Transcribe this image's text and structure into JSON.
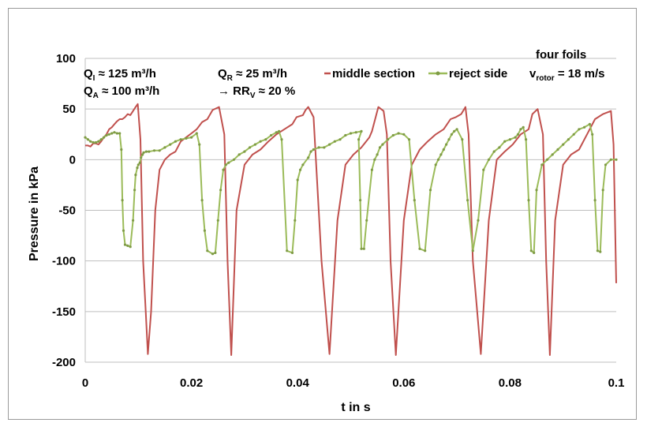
{
  "chart_data": {
    "type": "line",
    "xlabel": "t in s",
    "ylabel": "Pressure in kPa",
    "xlim": [
      0,
      0.1
    ],
    "ylim": [
      -200,
      100
    ],
    "x_ticks": [
      0,
      0.02,
      0.04,
      0.06,
      0.08,
      0.1
    ],
    "x_tick_labels": [
      "0",
      "0.02",
      "0.04",
      "0.06",
      "0.08",
      "0.1"
    ],
    "y_ticks": [
      100,
      50,
      0,
      -50,
      -100,
      -150,
      -200
    ],
    "y_tick_labels": [
      "100",
      "50",
      "0",
      "-50",
      "-100",
      "-150",
      "-200"
    ],
    "grid": "horizontal",
    "legend_position": "top",
    "series": [
      {
        "name": "middle section",
        "color": "#c0504d",
        "marker": "none",
        "x": [
          0,
          0.0005,
          0.001,
          0.0015,
          0.002,
          0.0025,
          0.003,
          0.0035,
          0.004,
          0.0045,
          0.005,
          0.0055,
          0.006,
          0.0065,
          0.007,
          0.0075,
          0.008,
          0.0085,
          0.009,
          0.0095,
          0.0099,
          0.0104,
          0.0109,
          0.0114,
          0.0118,
          0.0124,
          0.0132,
          0.014,
          0.015,
          0.016,
          0.017,
          0.018,
          0.019,
          0.02,
          0.021,
          0.022,
          0.023,
          0.024,
          0.0252,
          0.0262,
          0.0268,
          0.0275,
          0.0285,
          0.03,
          0.0315,
          0.033,
          0.0345,
          0.036,
          0.0375,
          0.039,
          0.0398,
          0.041,
          0.0415,
          0.042,
          0.043,
          0.0445,
          0.046,
          0.0475,
          0.049,
          0.0505,
          0.052,
          0.0535,
          0.054,
          0.0552,
          0.0562,
          0.0568,
          0.0575,
          0.0585,
          0.06,
          0.0615,
          0.063,
          0.0645,
          0.066,
          0.0675,
          0.0688,
          0.0698,
          0.0708,
          0.0716,
          0.0722,
          0.073,
          0.0745,
          0.076,
          0.0775,
          0.079,
          0.0805,
          0.082,
          0.0835,
          0.0842,
          0.0852,
          0.0862,
          0.0868,
          0.0875,
          0.0885,
          0.09,
          0.0915,
          0.093,
          0.0945,
          0.096,
          0.0975,
          0.099,
          0.0995,
          0.1
        ],
        "y": [
          14,
          14,
          13,
          16,
          16,
          15,
          18,
          22,
          25,
          30,
          32,
          35,
          38,
          40,
          40,
          42,
          45,
          44,
          48,
          52,
          55,
          20,
          -100,
          -150,
          -192,
          -150,
          -50,
          -10,
          0,
          5,
          8,
          18,
          22,
          26,
          30,
          37,
          40,
          49,
          52,
          25,
          -100,
          -193,
          -50,
          -5,
          5,
          10,
          18,
          25,
          30,
          35,
          42,
          44,
          49,
          52,
          42,
          -100,
          -192,
          -60,
          -5,
          5,
          12,
          22,
          28,
          52,
          48,
          25,
          -100,
          -193,
          -60,
          -5,
          10,
          18,
          25,
          30,
          40,
          42,
          45,
          52,
          25,
          -100,
          -192,
          -60,
          0,
          8,
          15,
          25,
          30,
          45,
          50,
          25,
          -100,
          -193,
          -60,
          -5,
          5,
          10,
          25,
          40,
          45,
          48,
          15,
          -122
        ]
      },
      {
        "name": "reject side",
        "color": "#9bbb59",
        "marker": "dot",
        "x": [
          0,
          0.0005,
          0.001,
          0.0015,
          0.002,
          0.0025,
          0.003,
          0.0035,
          0.004,
          0.0045,
          0.005,
          0.0055,
          0.006,
          0.0065,
          0.0068,
          0.007,
          0.0072,
          0.0075,
          0.008,
          0.0085,
          0.009,
          0.0093,
          0.0095,
          0.0098,
          0.01,
          0.0103,
          0.0105,
          0.0108,
          0.011,
          0.0115,
          0.012,
          0.013,
          0.014,
          0.015,
          0.016,
          0.017,
          0.018,
          0.019,
          0.02,
          0.021,
          0.0215,
          0.022,
          0.0225,
          0.023,
          0.024,
          0.0245,
          0.025,
          0.0255,
          0.026,
          0.0265,
          0.027,
          0.028,
          0.029,
          0.03,
          0.031,
          0.032,
          0.033,
          0.034,
          0.035,
          0.036,
          0.0365,
          0.037,
          0.038,
          0.039,
          0.0395,
          0.04,
          0.0405,
          0.041,
          0.042,
          0.0425,
          0.043,
          0.044,
          0.045,
          0.046,
          0.047,
          0.048,
          0.049,
          0.05,
          0.051,
          0.052,
          0.0515,
          0.0518,
          0.052,
          0.0525,
          0.053,
          0.054,
          0.0545,
          0.055,
          0.0555,
          0.056,
          0.057,
          0.058,
          0.059,
          0.06,
          0.061,
          0.062,
          0.063,
          0.064,
          0.065,
          0.066,
          0.0665,
          0.067,
          0.0675,
          0.068,
          0.0685,
          0.069,
          0.0695,
          0.07,
          0.071,
          0.072,
          0.073,
          0.074,
          0.075,
          0.076,
          0.077,
          0.078,
          0.079,
          0.08,
          0.081,
          0.0815,
          0.082,
          0.0825,
          0.083,
          0.0835,
          0.084,
          0.0845,
          0.085,
          0.086,
          0.087,
          0.088,
          0.089,
          0.09,
          0.091,
          0.092,
          0.093,
          0.094,
          0.095,
          0.0955,
          0.096,
          0.0965,
          0.097,
          0.0975,
          0.098,
          0.099,
          0.1
        ],
        "y": [
          22,
          20,
          18,
          17,
          17,
          18,
          20,
          22,
          24,
          25,
          26,
          27,
          26,
          26,
          10,
          -40,
          -70,
          -84,
          -85,
          -86,
          -60,
          -30,
          -15,
          -8,
          -5,
          -3,
          2,
          5,
          7,
          8,
          8,
          9,
          9,
          12,
          15,
          18,
          20,
          21,
          22,
          26,
          15,
          -40,
          -70,
          -90,
          -93,
          -92,
          -60,
          -30,
          -10,
          -5,
          -3,
          0,
          5,
          8,
          12,
          15,
          18,
          20,
          24,
          27,
          28,
          20,
          -90,
          -92,
          -60,
          -20,
          -10,
          -5,
          2,
          8,
          10,
          12,
          12,
          15,
          18,
          20,
          24,
          26,
          27,
          28,
          20,
          -40,
          -88,
          -88,
          -60,
          -10,
          0,
          5,
          12,
          15,
          20,
          24,
          26,
          25,
          20,
          -40,
          -88,
          -90,
          -30,
          -5,
          0,
          5,
          10,
          15,
          20,
          25,
          28,
          30,
          20,
          -40,
          -90,
          -60,
          -10,
          0,
          8,
          12,
          18,
          20,
          22,
          25,
          30,
          32,
          20,
          -40,
          -90,
          -92,
          -30,
          -5,
          0,
          5,
          10,
          15,
          20,
          25,
          30,
          32,
          35,
          25,
          -40,
          -90,
          -91,
          -30,
          -5,
          0,
          0
        ]
      }
    ],
    "annotations": {
      "qi_label": "Q",
      "qi_sub": "I",
      "qi_value": " ≈ 125 m³/h",
      "qa_label": "Q",
      "qa_sub": "A",
      "qa_value": " ≈ 100 m³/h",
      "qr_label": "Q",
      "qr_sub": "R",
      "qr_value": " ≈ 25 m³/h",
      "rr_prefix": "→ RR",
      "rr_sub": "V",
      "rr_value": " ≈ 20 %",
      "foils": "four foils",
      "vrotor_label": "v",
      "vrotor_sub": "rotor",
      "vrotor_value": " = 18 m/s"
    }
  }
}
